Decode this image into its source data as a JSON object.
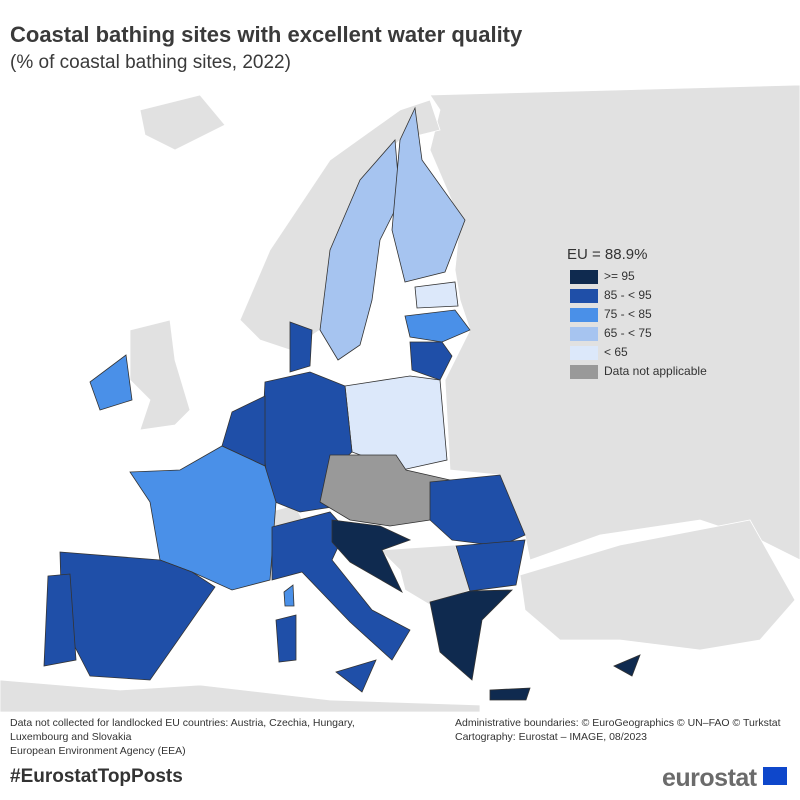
{
  "header": {
    "title": "Coastal bathing sites with excellent water quality",
    "subtitle": "(% of coastal bathing sites, 2022)"
  },
  "legend": {
    "heading": "EU = 88.9%",
    "items": [
      {
        "label": ">= 95",
        "color": "#0f2a4f"
      },
      {
        "label": "85 - < 95",
        "color": "#1f4fa8"
      },
      {
        "label": "75 - < 85",
        "color": "#4a90e8"
      },
      {
        "label": "65 - < 75",
        "color": "#a6c4f0"
      },
      {
        "label": "< 65",
        "color": "#dce8fa"
      },
      {
        "label": "Data not applicable",
        "color": "#999999"
      }
    ]
  },
  "footer": {
    "left": [
      "Data not collected for landlocked EU countries: Austria, Czechia, Hungary, Luxembourg and Slovakia",
      "European Environment Agency (EEA)"
    ],
    "right": [
      "Administrative boundaries: © EuroGeographics © UN–FAO © Turkstat",
      "Cartography: Eurostat – IMAGE, 08/2023"
    ],
    "hashtag": "#EurostatTopPosts",
    "logo": "eurostat"
  }
}
